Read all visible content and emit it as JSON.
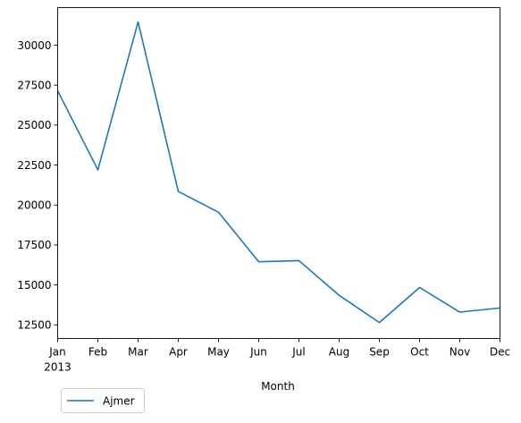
{
  "chart_data": {
    "type": "line",
    "title": "",
    "xlabel": "Month",
    "ylabel": "",
    "categories": [
      "Jan",
      "Feb",
      "Mar",
      "Apr",
      "May",
      "Jun",
      "Jul",
      "Aug",
      "Sep",
      "Oct",
      "Nov",
      "Dec"
    ],
    "year_label": "2013",
    "series": [
      {
        "name": "Ajmer",
        "color": "#1f77b4",
        "values": [
          27150,
          22200,
          31450,
          20850,
          19550,
          16450,
          16520,
          14350,
          12650,
          14840,
          13300,
          13560
        ]
      }
    ],
    "yticks": [
      12500,
      15000,
      17500,
      20000,
      22500,
      25000,
      27500,
      30000
    ],
    "ylim": [
      11650,
      32350
    ],
    "grid": false,
    "legend_position": "below-left"
  }
}
